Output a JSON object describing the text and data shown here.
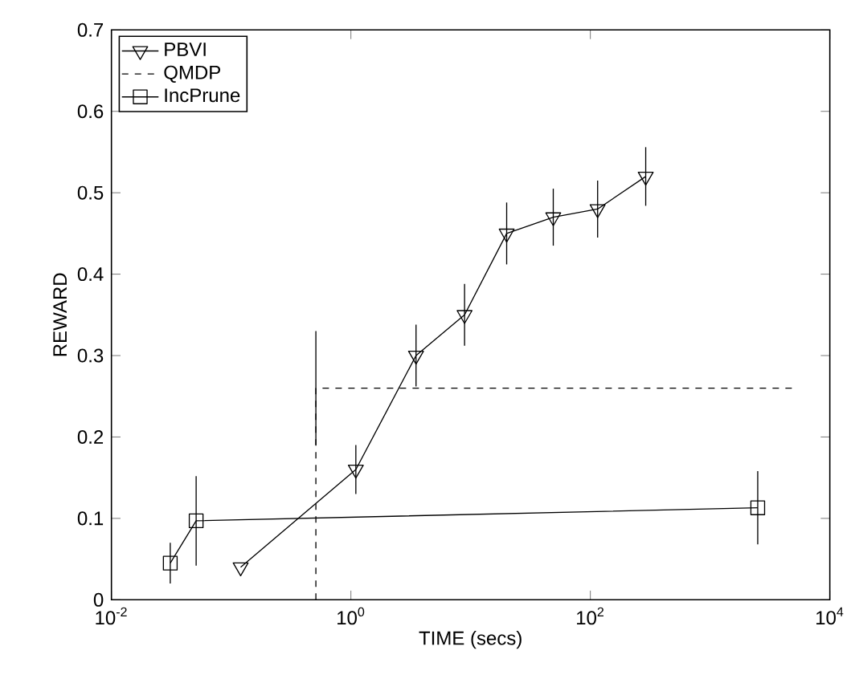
{
  "chart_data": {
    "type": "line",
    "xlabel": "TIME (secs)",
    "ylabel": "REWARD",
    "log": "x",
    "grid": false,
    "legend": "top left",
    "xlim": [
      0.01,
      10000
    ],
    "ylim": [
      0,
      0.7
    ],
    "xticks": [
      {
        "value": 0.01,
        "label": "10$^{-2}$"
      },
      {
        "value": 1,
        "label": "10$^{0}$"
      },
      {
        "value": 100,
        "label": "10$^{2}$"
      },
      {
        "value": 10000,
        "label": "10$^{4}$"
      }
    ],
    "yticks": [
      0,
      0.1,
      0.2,
      0.3,
      0.4,
      0.5,
      0.6,
      0.7
    ],
    "series": [
      {
        "name": "PBVI",
        "color": "#000000",
        "marker": "triangle",
        "line_style": "solid",
        "x": [
          0.12,
          1.1,
          3.5,
          8.9,
          20,
          49,
          115,
          290
        ],
        "values": [
          0.04,
          0.16,
          0.3,
          0.35,
          0.45,
          0.47,
          0.48,
          0.52
        ],
        "errors": [
          null,
          0.03,
          0.038,
          0.038,
          0.038,
          0.035,
          0.035,
          0.036
        ]
      },
      {
        "name": "QMDP",
        "color": "#000000",
        "marker": "none",
        "line_style": "dashed",
        "x": [
          0.51,
          0.51,
          5000
        ],
        "values": [
          0,
          0.26,
          0.26
        ],
        "errors": [
          null,
          0.07,
          null
        ]
      },
      {
        "name": "IncPrune",
        "color": "#000000",
        "marker": "square",
        "line_style": "solid",
        "x": [
          0.031,
          0.051,
          2500
        ],
        "values": [
          0.045,
          0.097,
          0.113
        ],
        "errors": [
          0.025,
          0.055,
          0.045
        ]
      }
    ]
  }
}
